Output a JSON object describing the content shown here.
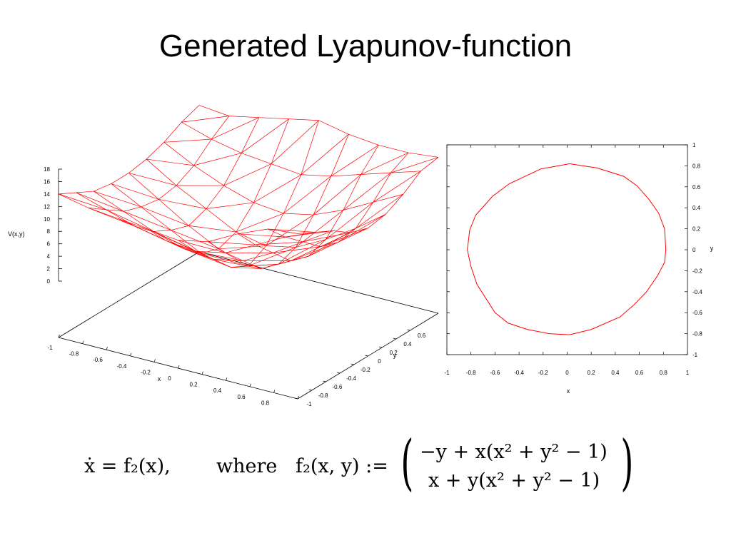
{
  "title": "Generated Lyapunov-function",
  "chart_data": [
    {
      "type": "surface",
      "color": "#ff0000",
      "zlabel": "V(x,y)",
      "xlabel": "x",
      "ylabel": "y",
      "xlim": [
        -1,
        1
      ],
      "ylim": [
        -1,
        1
      ],
      "zlim": [
        0,
        18
      ],
      "x_ticks": [
        "-1",
        "-0.8",
        "-0.6",
        "-0.4",
        "-0.2",
        "0",
        "0.2",
        "0.4",
        "0.6",
        "0.8",
        "1"
      ],
      "y_ticks": [
        "-1",
        "-0.8",
        "-0.6",
        "-0.4",
        "-0.2",
        "0",
        "0.2",
        "0.4",
        "0.6"
      ],
      "z_ticks": [
        "0",
        "2",
        "4",
        "6",
        "8",
        "10",
        "12",
        "14",
        "16",
        "18"
      ],
      "grid_x": [
        -1,
        -0.75,
        -0.5,
        -0.25,
        0,
        0.25,
        0.5,
        0.75,
        1
      ],
      "grid_y": [
        -1,
        -0.75,
        -0.5,
        -0.25,
        0,
        0.25,
        0.5,
        0.75,
        1
      ],
      "z": [
        [
          14,
          13,
          12.5,
          12,
          11.5,
          12.5,
          15,
          17,
          17.5
        ],
        [
          12.5,
          11,
          9.5,
          8.5,
          8,
          9,
          11.5,
          14,
          16
        ],
        [
          11,
          9,
          7,
          5.5,
          5,
          6,
          8.5,
          11.5,
          14.5
        ],
        [
          10.5,
          8,
          5.5,
          3,
          2,
          3,
          5.5,
          9,
          12.5
        ],
        [
          10.5,
          7.5,
          4.5,
          2,
          0.5,
          2,
          4.5,
          8,
          11.5
        ],
        [
          11,
          8,
          5.5,
          3,
          2,
          3,
          5.5,
          8.5,
          12
        ],
        [
          12,
          9.5,
          7.5,
          6,
          5.5,
          6.5,
          8.5,
          11,
          13.5
        ],
        [
          13.5,
          12,
          11,
          10.5,
          10,
          11,
          12.5,
          14,
          15.5
        ],
        [
          14.5,
          14,
          15,
          16,
          17,
          16,
          15.5,
          15.5,
          16
        ]
      ]
    },
    {
      "type": "line",
      "color": "#ff0000",
      "xlabel": "x",
      "ylabel": "y",
      "xlim": [
        -1,
        1
      ],
      "ylim": [
        -1,
        1
      ],
      "x_ticks": [
        "-1",
        "-0.8",
        "-0.6",
        "-0.4",
        "-0.2",
        "0",
        "0.2",
        "0.4",
        "0.6",
        "0.8",
        "1"
      ],
      "y_ticks": [
        "1",
        "0.8",
        "0.6",
        "0.4",
        "0.2",
        "0",
        "-0.2",
        "-0.4",
        "-0.6",
        "-0.8",
        "-1"
      ],
      "series": [
        {
          "x": [
            0.82,
            0.81,
            0.76,
            0.68,
            0.58,
            0.47,
            0.25,
            0.02,
            -0.22,
            -0.48,
            -0.62,
            -0.76,
            -0.81,
            -0.83,
            -0.8,
            -0.75,
            -0.6,
            -0.49,
            -0.33,
            -0.15,
            0.02,
            0.2,
            0.44,
            0.56,
            0.66,
            0.75,
            0.81,
            0.82
          ],
          "y": [
            0.0,
            0.2,
            0.35,
            0.48,
            0.61,
            0.7,
            0.78,
            0.82,
            0.77,
            0.63,
            0.51,
            0.33,
            0.19,
            0.0,
            -0.16,
            -0.33,
            -0.6,
            -0.7,
            -0.76,
            -0.8,
            -0.81,
            -0.76,
            -0.64,
            -0.52,
            -0.4,
            -0.25,
            -0.12,
            0.0
          ]
        }
      ]
    }
  ],
  "equation": {
    "lhs": "ẋ = f₂(x),",
    "where": "where",
    "def": "f₂(x, y) :=",
    "row1": "−y + x(x² + y² − 1)",
    "row2": "x + y(x² + y² − 1)"
  }
}
